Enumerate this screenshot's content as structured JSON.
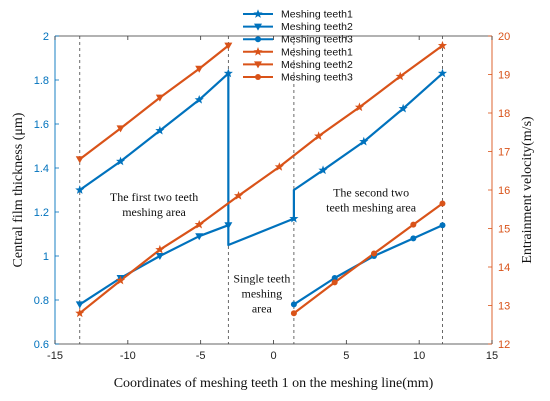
{
  "chart_data": {
    "type": "line",
    "xlabel": "Coordinates of meshing teeth 1 on the meshing line(mm)",
    "ylabel_left": "Central film thickness (μm)",
    "ylabel_right": "Entrainment velocity(m/s)",
    "xlim": [
      -15,
      15
    ],
    "ylim_left": [
      0.6,
      2.0
    ],
    "ylim_right": [
      12,
      20
    ],
    "xticks": [
      "-15",
      "-10",
      "-5",
      "0",
      "5",
      "10",
      "15"
    ],
    "yticks_left": [
      "0.6",
      "0.8",
      "1",
      "1.2",
      "1.4",
      "1.6",
      "1.8",
      "2"
    ],
    "yticks_right": [
      "12",
      "13",
      "14",
      "15",
      "16",
      "17",
      "18",
      "19",
      "20"
    ],
    "grid": false,
    "legend_position": "top-center",
    "colors": {
      "left_axis": "#0072BD",
      "right_axis": "#D95319"
    },
    "divider_x": [
      -13.3,
      -3.1,
      1.4,
      11.6
    ],
    "annotations": [
      {
        "lines": [
          "The first two teeth",
          "meshing area"
        ],
        "x": -8.2,
        "y": 1.25
      },
      {
        "lines": [
          "Single teeth",
          "meshing",
          "area"
        ],
        "x": -0.8,
        "y": 0.88
      },
      {
        "lines": [
          "The second two",
          "teeth meshing area"
        ],
        "x": 6.7,
        "y": 1.27
      }
    ],
    "series": [
      {
        "name": "Meshing teeth1",
        "axis": "left",
        "marker": "star",
        "color": "#0072BD",
        "x": [
          -13.3,
          -10.5,
          -7.8,
          -5.1,
          -3.1,
          -3.1,
          1.4,
          1.4,
          3.4,
          6.2,
          8.9,
          11.6
        ],
        "y": [
          1.3,
          1.43,
          1.57,
          1.71,
          1.83,
          1.05,
          1.17,
          1.3,
          1.39,
          1.52,
          1.67,
          1.83
        ]
      },
      {
        "name": "Meshing teeth2",
        "axis": "left",
        "marker": "triangle-down",
        "color": "#0072BD",
        "x": [
          -13.3,
          -10.5,
          -7.8,
          -5.1,
          -3.1
        ],
        "y": [
          0.78,
          0.9,
          1.0,
          1.09,
          1.14
        ]
      },
      {
        "name": "Meshing teeth3",
        "axis": "left",
        "marker": "circle",
        "color": "#0072BD",
        "x": [
          1.4,
          4.2,
          6.9,
          9.6,
          11.6
        ],
        "y": [
          0.78,
          0.9,
          1.0,
          1.08,
          1.14
        ]
      },
      {
        "name": "Meshing teeth1",
        "axis": "right",
        "marker": "star",
        "color": "#D95319",
        "x": [
          -13.3,
          -10.5,
          -7.8,
          -5.1,
          -2.4,
          0.4,
          3.1,
          5.9,
          8.7,
          11.6
        ],
        "y": [
          12.8,
          13.65,
          14.45,
          15.1,
          15.85,
          16.6,
          17.4,
          18.15,
          18.95,
          19.75
        ]
      },
      {
        "name": "Meshing teeth2",
        "axis": "right",
        "marker": "triangle-down",
        "color": "#D95319",
        "x": [
          -13.3,
          -10.5,
          -7.8,
          -5.1,
          -3.1
        ],
        "y": [
          16.8,
          17.6,
          18.4,
          19.15,
          19.75
        ]
      },
      {
        "name": "Meshing teeth3",
        "axis": "right",
        "marker": "circle",
        "color": "#D95319",
        "x": [
          1.4,
          4.2,
          6.9,
          9.6,
          11.6
        ],
        "y": [
          12.8,
          13.6,
          14.35,
          15.1,
          15.65
        ]
      }
    ]
  }
}
